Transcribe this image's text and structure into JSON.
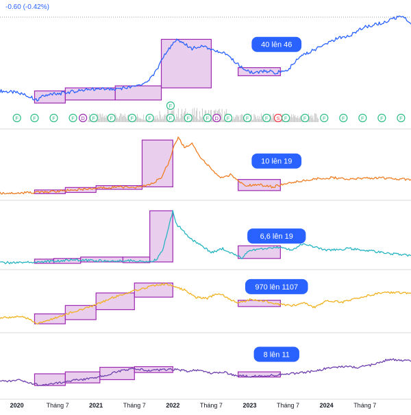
{
  "header": {
    "change_text": "-0.60 (-0.42%)"
  },
  "colors": {
    "box_fill": "#e1bee7",
    "box_stroke": "#9c27b0",
    "badge": "#2962ff",
    "divider": "#d9d9d9",
    "axis_text": "#131722",
    "marker_green": "#26a69a",
    "marker_purple": "#9c27b0",
    "marker_red": "#f23645",
    "volume": "#c9c9c9"
  },
  "chart_data": [
    {
      "type": "line",
      "name": "panel-1",
      "color": "#2962ff",
      "y_range": [
        20,
        115
      ],
      "x_domain": [
        2019.75,
        2025.1
      ],
      "x": [
        2019.75,
        2020.0,
        2020.15,
        2020.22,
        2020.35,
        2020.5,
        2020.75,
        2021.0,
        2021.25,
        2021.5,
        2021.62,
        2021.75,
        2021.85,
        2021.95,
        2022.05,
        2022.12,
        2022.25,
        2022.4,
        2022.55,
        2022.7,
        2022.85,
        2022.95,
        2023.05,
        2023.2,
        2023.35,
        2023.5,
        2023.65,
        2023.8,
        2024.0,
        2024.15,
        2024.3,
        2024.45,
        2024.55,
        2024.7,
        2024.85,
        2025.0,
        2025.1
      ],
      "values": [
        40,
        38,
        34,
        31,
        36,
        37,
        40,
        42,
        42,
        44,
        47,
        55,
        70,
        82,
        90,
        88,
        82,
        84,
        80,
        76,
        66,
        61,
        57,
        60,
        58,
        61,
        74,
        79,
        87,
        92,
        94,
        102,
        104,
        107,
        111,
        114,
        106
      ],
      "boxes": [
        {
          "x1": 2020.2,
          "x2": 2020.6,
          "y1": 28,
          "y2": 40
        },
        {
          "x1": 2020.6,
          "x2": 2021.25,
          "y1": 31,
          "y2": 43
        },
        {
          "x1": 2021.25,
          "x2": 2021.85,
          "y1": 31,
          "y2": 45
        },
        {
          "x1": 2021.85,
          "x2": 2022.5,
          "y1": 43,
          "y2": 91
        },
        {
          "x1": 2022.85,
          "x2": 2023.4,
          "y1": 55,
          "y2": 63
        }
      ],
      "label": "40 lên 46",
      "label_pos": [
        2023.35,
        86
      ]
    },
    {
      "type": "line",
      "name": "panel-2",
      "color": "#ef7d22",
      "y_range": [
        6,
        60
      ],
      "x_domain": [
        2019.75,
        2025.1
      ],
      "x": [
        2019.75,
        2020.0,
        2020.2,
        2020.35,
        2020.6,
        2020.8,
        2021.0,
        2021.3,
        2021.5,
        2021.6,
        2021.75,
        2021.85,
        2021.95,
        2022.02,
        2022.07,
        2022.15,
        2022.25,
        2022.35,
        2022.45,
        2022.55,
        2022.65,
        2022.75,
        2022.85,
        2022.95,
        2023.1,
        2023.3,
        2023.5,
        2023.7,
        2023.9,
        2024.1,
        2024.3,
        2024.5,
        2024.7,
        2024.9,
        2025.1
      ],
      "values": [
        8,
        8,
        8.5,
        9,
        10,
        11,
        12,
        13,
        12.5,
        13,
        16,
        21,
        33,
        48,
        53,
        45,
        48,
        38,
        31,
        24,
        20,
        23,
        18,
        14,
        15,
        13,
        16,
        18,
        20,
        20.5,
        19,
        20,
        20.5,
        19.5,
        19
      ],
      "boxes": [
        {
          "x1": 2020.2,
          "x2": 2020.6,
          "y1": 7.5,
          "y2": 10.5
        },
        {
          "x1": 2020.6,
          "x2": 2021.0,
          "y1": 8.5,
          "y2": 12.5
        },
        {
          "x1": 2021.0,
          "x2": 2021.6,
          "y1": 11,
          "y2": 14
        },
        {
          "x1": 2021.6,
          "x2": 2022.0,
          "y1": 13,
          "y2": 51
        },
        {
          "x1": 2022.85,
          "x2": 2023.4,
          "y1": 10,
          "y2": 19
        }
      ],
      "label": "10 lên 19",
      "label_pos": [
        2023.35,
        34
      ]
    },
    {
      "type": "line",
      "name": "panel-3",
      "color": "#26b4c2",
      "y_range": [
        4,
        50
      ],
      "x_domain": [
        2019.75,
        2025.1
      ],
      "x": [
        2019.75,
        2020.0,
        2020.2,
        2020.45,
        2020.7,
        2021.0,
        2021.2,
        2021.45,
        2021.6,
        2021.75,
        2021.8,
        2021.87,
        2021.93,
        2022.0,
        2022.05,
        2022.12,
        2022.2,
        2022.35,
        2022.5,
        2022.65,
        2022.8,
        2022.9,
        2023.0,
        2023.2,
        2023.4,
        2023.55,
        2023.7,
        2023.85,
        2024.0,
        2024.3,
        2024.5,
        2024.75,
        2025.1
      ],
      "values": [
        6,
        6,
        6.5,
        7,
        8,
        7.5,
        7,
        7.5,
        7,
        7.5,
        9,
        15,
        28,
        43,
        33,
        30,
        24,
        19,
        13,
        16,
        12,
        9,
        15,
        16,
        17,
        15,
        20,
        17,
        15,
        16,
        15,
        13,
        11
      ],
      "boxes": [
        {
          "x1": 2020.2,
          "x2": 2020.45,
          "y1": 5.5,
          "y2": 8.5
        },
        {
          "x1": 2020.45,
          "x2": 2020.8,
          "y1": 5.5,
          "y2": 9
        },
        {
          "x1": 2020.8,
          "x2": 2021.35,
          "y1": 6.5,
          "y2": 10
        },
        {
          "x1": 2021.35,
          "x2": 2021.7,
          "y1": 6,
          "y2": 10
        },
        {
          "x1": 2021.7,
          "x2": 2022.0,
          "y1": 6.5,
          "y2": 43
        },
        {
          "x1": 2022.85,
          "x2": 2023.4,
          "y1": 9,
          "y2": 18
        }
      ],
      "label": "6,6  lên 19",
      "label_pos": [
        2023.35,
        25
      ]
    },
    {
      "type": "line",
      "name": "panel-4",
      "color": "#f0b21e",
      "y_range": [
        880,
        1450
      ],
      "x_domain": [
        2019.75,
        2025.1
      ],
      "x": [
        2019.75,
        2020.0,
        2020.15,
        2020.22,
        2020.3,
        2020.5,
        2020.7,
        2020.85,
        2021.0,
        2021.2,
        2021.4,
        2021.55,
        2021.75,
        2021.9,
        2022.0,
        2022.15,
        2022.3,
        2022.45,
        2022.6,
        2022.75,
        2022.85,
        2023.0,
        2023.2,
        2023.4,
        2023.55,
        2023.7,
        2023.85,
        2024.0,
        2024.2,
        2024.45,
        2024.7,
        2024.9,
        2025.1
      ],
      "values": [
        1000,
        1015,
        990,
        945,
        960,
        1010,
        1060,
        1090,
        1130,
        1190,
        1240,
        1270,
        1310,
        1325,
        1305,
        1270,
        1200,
        1190,
        1240,
        1180,
        1140,
        1175,
        1160,
        1130,
        1120,
        1145,
        1100,
        1170,
        1150,
        1200,
        1240,
        1245,
        1235
      ],
      "boxes": [
        {
          "x1": 2020.2,
          "x2": 2020.6,
          "y1": 945,
          "y2": 1040
        },
        {
          "x1": 2020.6,
          "x2": 2021.0,
          "y1": 985,
          "y2": 1120
        },
        {
          "x1": 2021.0,
          "x2": 2021.5,
          "y1": 1080,
          "y2": 1240
        },
        {
          "x1": 2021.5,
          "x2": 2022.0,
          "y1": 1200,
          "y2": 1335
        },
        {
          "x1": 2022.85,
          "x2": 2023.4,
          "y1": 1110,
          "y2": 1170
        }
      ],
      "label": "970 lên 1107",
      "label_pos": [
        2023.35,
        1300
      ]
    },
    {
      "type": "line",
      "name": "panel-5",
      "color": "#6f3fae",
      "y_range": [
        5.5,
        15
      ],
      "x_domain": [
        2019.75,
        2025.1
      ],
      "x": [
        2019.75,
        2020.0,
        2020.2,
        2020.3,
        2020.5,
        2020.7,
        2020.9,
        2021.1,
        2021.3,
        2021.5,
        2021.7,
        2021.85,
        2022.0,
        2022.2,
        2022.35,
        2022.5,
        2022.65,
        2022.8,
        2023.0,
        2023.2,
        2023.35,
        2023.5,
        2023.7,
        2023.9,
        2024.0,
        2024.2,
        2024.4,
        2024.6,
        2024.8,
        2025.0,
        2025.1
      ],
      "values": [
        8,
        8.2,
        7.6,
        7.4,
        7.8,
        8.2,
        8.4,
        8.9,
        9.6,
        10,
        9.7,
        9.8,
        9.9,
        9.6,
        9.8,
        9.3,
        9.5,
        9,
        8.8,
        8.9,
        9,
        9.2,
        9.4,
        9.7,
        10.1,
        10.3,
        10.2,
        10.6,
        11.4,
        11.3,
        11.1
      ],
      "boxes": [
        {
          "x1": 2020.2,
          "x2": 2020.6,
          "y1": 7.4,
          "y2": 9.2
        },
        {
          "x1": 2020.6,
          "x2": 2021.05,
          "y1": 7.8,
          "y2": 9.5
        },
        {
          "x1": 2021.05,
          "x2": 2021.5,
          "y1": 8.3,
          "y2": 10.2
        },
        {
          "x1": 2021.5,
          "x2": 2022.0,
          "y1": 9.4,
          "y2": 10.3
        },
        {
          "x1": 2022.85,
          "x2": 2023.4,
          "y1": 8.7,
          "y2": 9.5
        }
      ],
      "label": "8 lên 11",
      "label_pos": [
        2023.35,
        12.2
      ]
    }
  ],
  "dividend_markers": [
    {
      "x": 2019.97,
      "kind": "F"
    },
    {
      "x": 2020.2,
      "kind": "F"
    },
    {
      "x": 2020.45,
      "kind": "F"
    },
    {
      "x": 2020.7,
      "kind": "F"
    },
    {
      "x": 2020.83,
      "kind": "D"
    },
    {
      "x": 2020.97,
      "kind": "F"
    },
    {
      "x": 2021.2,
      "kind": "F"
    },
    {
      "x": 2021.47,
      "kind": "F"
    },
    {
      "x": 2021.7,
      "kind": "F"
    },
    {
      "x": 2021.97,
      "kind": "F"
    },
    {
      "x": 2022.2,
      "kind": "F"
    },
    {
      "x": 2022.45,
      "kind": "F"
    },
    {
      "x": 2022.57,
      "kind": "D"
    },
    {
      "x": 2022.72,
      "kind": "F"
    },
    {
      "x": 2022.97,
      "kind": "F"
    },
    {
      "x": 2023.22,
      "kind": "F"
    },
    {
      "x": 2023.37,
      "kind": "S"
    },
    {
      "x": 2023.47,
      "kind": "F"
    },
    {
      "x": 2023.72,
      "kind": "F"
    },
    {
      "x": 2023.97,
      "kind": "F"
    },
    {
      "x": 2024.22,
      "kind": "F"
    },
    {
      "x": 2024.47,
      "kind": "F"
    },
    {
      "x": 2024.72,
      "kind": "F"
    },
    {
      "x": 2024.97,
      "kind": "F"
    }
  ],
  "earnings_marker": {
    "x": 2021.97,
    "kind": "F"
  },
  "x_axis": {
    "ticks": [
      {
        "x": 2019.97,
        "label": "2020",
        "bold": true
      },
      {
        "x": 2020.5,
        "label": "Tháng 7",
        "bold": false
      },
      {
        "x": 2021.0,
        "label": "2021",
        "bold": true
      },
      {
        "x": 2021.5,
        "label": "Tháng 7",
        "bold": false
      },
      {
        "x": 2022.0,
        "label": "2022",
        "bold": true
      },
      {
        "x": 2022.5,
        "label": "Tháng 7",
        "bold": false
      },
      {
        "x": 2023.0,
        "label": "2023",
        "bold": true
      },
      {
        "x": 2023.5,
        "label": "Tháng 7",
        "bold": false
      },
      {
        "x": 2024.0,
        "label": "2024",
        "bold": true
      },
      {
        "x": 2024.5,
        "label": "Tháng 7",
        "bold": false
      }
    ]
  }
}
